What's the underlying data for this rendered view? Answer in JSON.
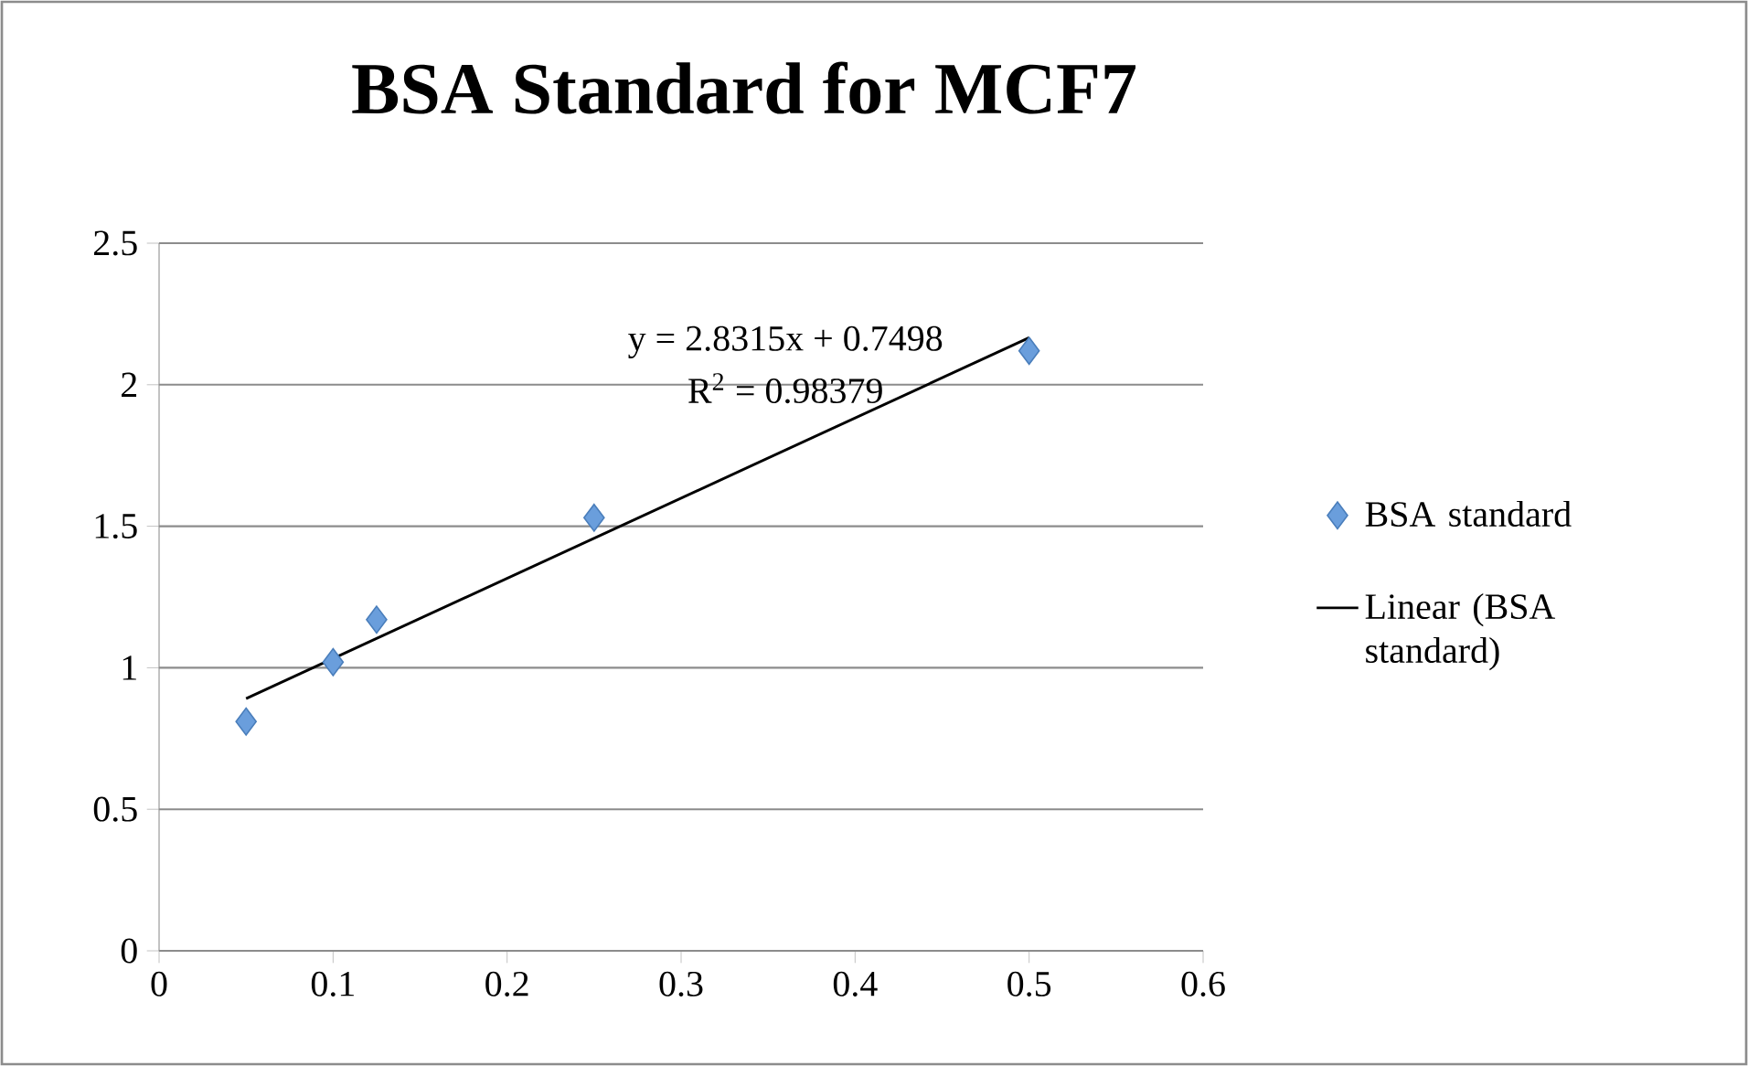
{
  "chart_data": {
    "type": "scatter",
    "title": "BSA Standard for MCF7",
    "x": [
      0.05,
      0.1,
      0.125,
      0.25,
      0.5
    ],
    "series": [
      {
        "name": "BSA standard",
        "marker": "diamond",
        "color": "#6a9edc",
        "values": [
          0.81,
          1.02,
          1.17,
          1.53,
          2.12
        ]
      },
      {
        "name": "Linear (BSA standard)",
        "type": "line",
        "marker": "none",
        "color": "#000000",
        "x": [
          0.05,
          0.5
        ],
        "values": [
          0.891,
          2.166
        ]
      }
    ],
    "annotations": [
      "y = 2.8315x + 0.7498",
      "R$^{2}$ = 0.98379"
    ],
    "xlim": [
      0,
      0.6
    ],
    "xticks": [
      0,
      0.1,
      0.2,
      0.3,
      0.4,
      0.5,
      0.6
    ],
    "ylim": [
      0,
      2.5
    ],
    "yticks": [
      0,
      0.5,
      1,
      1.5,
      2,
      2.5
    ],
    "grid": "y",
    "legend": "right",
    "line_style": "solid"
  }
}
